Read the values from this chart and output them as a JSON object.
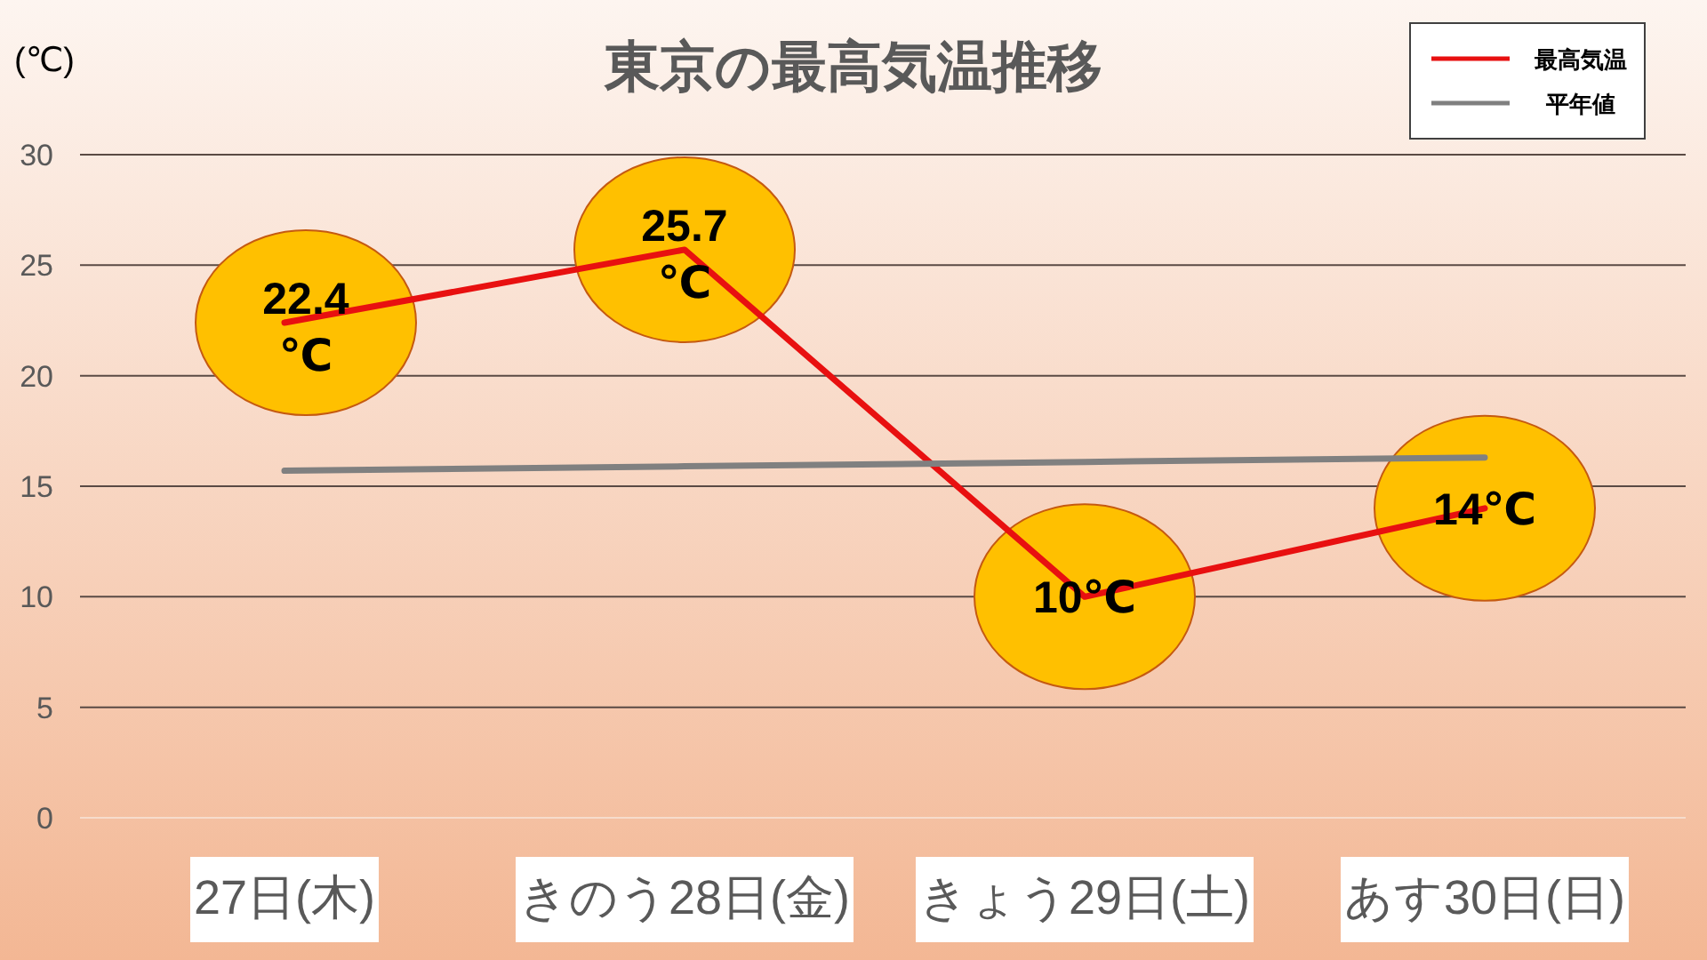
{
  "chart_data": {
    "type": "line",
    "title": "東京の最高気温推移",
    "ylabel": "(℃)",
    "categories": [
      "27日(木)",
      "きのう28日(金)",
      "きょう29日(土)",
      "あす30日(日)"
    ],
    "series": [
      {
        "name": "最高気温",
        "color": "#e81010",
        "values": [
          22.4,
          25.7,
          10,
          14
        ],
        "value_labels": [
          "22.4℃",
          "25.7℃",
          "10℃",
          "14℃"
        ]
      },
      {
        "name": "平年値",
        "color": "#808080",
        "values": [
          15.7,
          15.9,
          16.1,
          16.3
        ]
      }
    ],
    "ylim": [
      0,
      30
    ],
    "yticks": [
      0,
      5,
      10,
      15,
      20,
      25,
      30
    ],
    "grid": "y",
    "legend": "top right",
    "line_style": "solid",
    "marker": "none"
  }
}
